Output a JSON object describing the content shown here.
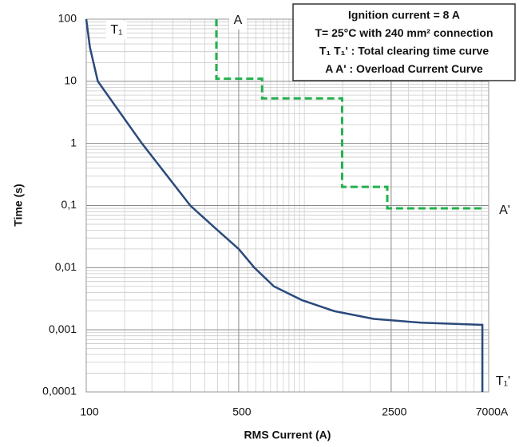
{
  "chart_data": {
    "type": "line",
    "x_label": "RMS Current (A)",
    "y_label": "Time (s)",
    "log_x": true,
    "log_y": true,
    "grid": true,
    "minor_grid": true,
    "xlim": [
      100,
      7000
    ],
    "ylim": [
      0.0001,
      100
    ],
    "xticks": [
      100,
      500,
      2500,
      {
        "value": 7000,
        "label": "7000A"
      }
    ],
    "yticks": [
      100,
      10,
      1,
      {
        "value": 0.1,
        "label": "0,1"
      },
      {
        "value": 0.01,
        "label": "0,01"
      },
      {
        "value": 0.001,
        "label": "0,001"
      },
      {
        "value": 0.0001,
        "label": "0,0001"
      }
    ],
    "info_box": [
      "Ignition current = 8 A",
      "T= 25°C with 240 mm² connection",
      "T₁ T₁' : Total clearing time curve",
      "A A' : Overload Current Curve"
    ],
    "annotations": [
      "T₁",
      "A",
      "A'",
      "T₁'"
    ],
    "series": [
      {
        "color": "#2b4a7c",
        "dashed": false,
        "x": [
          100,
          104,
          113,
          180,
          300,
          400,
          500,
          590,
          725,
          975,
          1370,
          2080,
          3440,
          6550,
          6550
        ],
        "values": [
          100,
          35,
          10,
          1,
          0.1,
          0.04,
          0.02,
          0.01,
          0.005,
          0.003,
          0.002,
          0.0015,
          0.0013,
          0.0012,
          0.0001
        ]
      },
      {
        "color": "#22b14c",
        "dashed": true,
        "x": [
          395,
          395,
          640,
          640,
          1490,
          1490,
          2400,
          2400,
          6500
        ],
        "values": [
          100,
          11,
          11,
          5.3,
          5.3,
          0.2,
          0.2,
          0.09,
          0.09
        ]
      }
    ]
  }
}
